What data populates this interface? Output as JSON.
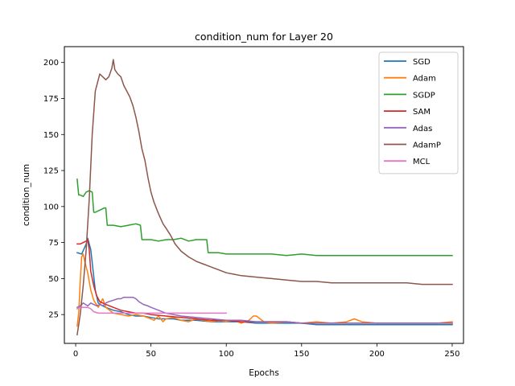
{
  "chart_data": {
    "type": "line",
    "title": "condition_num for Layer 20",
    "xlabel": "Epochs",
    "ylabel": "condition_num",
    "xlim": [
      -7.5,
      257.5
    ],
    "ylim": [
      5,
      211
    ],
    "xticks": [
      0,
      50,
      100,
      150,
      200,
      250
    ],
    "yticks": [
      25,
      50,
      75,
      100,
      125,
      150,
      175,
      200
    ],
    "grid": false,
    "legend_position": "top-right",
    "series": [
      {
        "name": "SGD",
        "color": "#1f77b4",
        "x": [
          1,
          4,
          7,
          8,
          10,
          13,
          15,
          18,
          20,
          25,
          30,
          35,
          40,
          45,
          50,
          55,
          60,
          65,
          70,
          80,
          90,
          100,
          110,
          120,
          130,
          140,
          150,
          160,
          170,
          180,
          190,
          200,
          210,
          220,
          230,
          240,
          250
        ],
        "values": [
          68,
          67,
          74,
          78,
          70,
          42,
          33,
          31,
          30,
          28,
          27,
          25,
          24,
          24,
          23,
          22,
          22,
          22,
          21,
          21,
          20,
          20,
          20,
          19,
          19,
          19,
          19,
          18,
          18,
          18,
          18,
          18,
          18,
          18,
          18,
          18,
          18
        ]
      },
      {
        "name": "Adam",
        "color": "#ff7f0e",
        "x": [
          1,
          2,
          3,
          4,
          5,
          6,
          8,
          10,
          12,
          15,
          18,
          20,
          25,
          30,
          35,
          40,
          45,
          50,
          52,
          55,
          58,
          60,
          65,
          70,
          75,
          80,
          85,
          90,
          95,
          100,
          105,
          110,
          115,
          118,
          120,
          125,
          130,
          140,
          150,
          160,
          170,
          180,
          185,
          190,
          200,
          210,
          220,
          230,
          240,
          250
        ],
        "values": [
          17,
          26,
          48,
          65,
          67,
          62,
          54,
          42,
          35,
          30,
          36,
          30,
          26,
          25,
          24,
          25,
          24,
          22,
          21,
          24,
          20,
          22,
          23,
          21,
          20,
          22,
          21,
          20,
          21,
          20,
          21,
          19,
          21,
          24,
          24,
          20,
          19,
          20,
          19,
          20,
          19,
          20,
          22,
          20,
          19,
          19,
          19,
          19,
          19,
          20
        ]
      },
      {
        "name": "SGDP",
        "color": "#2ca02c",
        "x": [
          1,
          2,
          3,
          5,
          7,
          9,
          11,
          12,
          13,
          15,
          17,
          19,
          20,
          21,
          22,
          25,
          30,
          35,
          40,
          43,
          44,
          50,
          55,
          60,
          65,
          70,
          75,
          80,
          85,
          87,
          88,
          95,
          100,
          110,
          120,
          125,
          130,
          140,
          150,
          160,
          170,
          180,
          190,
          200,
          210,
          220,
          230,
          240,
          250
        ],
        "values": [
          119,
          108,
          108,
          107,
          110,
          111,
          110,
          96,
          96,
          97,
          98,
          99,
          99,
          87,
          87,
          87,
          86,
          87,
          88,
          87,
          77,
          77,
          76,
          77,
          77,
          78,
          76,
          77,
          77,
          77,
          68,
          68,
          67,
          67,
          67,
          67,
          67,
          66,
          67,
          66,
          66,
          66,
          66,
          66,
          66,
          66,
          66,
          66,
          66
        ]
      },
      {
        "name": "SAM",
        "color": "#d62728",
        "x": [
          1,
          3,
          5,
          7,
          8,
          9,
          10,
          12,
          14,
          16,
          18,
          20,
          25,
          30,
          35,
          40,
          45,
          50,
          60,
          70,
          80,
          90,
          100,
          110,
          120,
          130,
          140,
          150,
          160,
          170,
          180,
          190,
          200,
          210,
          220,
          230,
          240,
          250
        ],
        "values": [
          74,
          74,
          75,
          76,
          77,
          70,
          55,
          45,
          38,
          34,
          33,
          32,
          30,
          28,
          27,
          26,
          26,
          25,
          24,
          23,
          22,
          21,
          21,
          20,
          20,
          20,
          20,
          19,
          19,
          19,
          19,
          19,
          19,
          19,
          19,
          19,
          19,
          19
        ]
      },
      {
        "name": "Adas",
        "color": "#9467bd",
        "x": [
          1,
          3,
          5,
          8,
          10,
          12,
          14,
          16,
          18,
          20,
          22,
          25,
          28,
          30,
          32,
          35,
          38,
          40,
          42,
          45,
          48,
          50,
          55,
          60,
          70,
          80,
          90,
          100,
          110,
          120,
          130,
          140,
          150,
          160,
          170,
          180,
          190,
          200,
          210,
          220,
          230,
          240,
          250
        ],
        "values": [
          30,
          31,
          33,
          31,
          33,
          32,
          31,
          32,
          31,
          33,
          34,
          35,
          36,
          36,
          37,
          37,
          37,
          36,
          34,
          32,
          31,
          30,
          28,
          26,
          24,
          23,
          22,
          21,
          21,
          20,
          20,
          20,
          19,
          19,
          19,
          19,
          19,
          19,
          19,
          19,
          19,
          19,
          19
        ]
      },
      {
        "name": "AdamP",
        "color": "#8c564b",
        "x": [
          1,
          3,
          5,
          7,
          9,
          11,
          13,
          14,
          16,
          18,
          20,
          22,
          24,
          25,
          26,
          28,
          30,
          32,
          34,
          36,
          38,
          40,
          42,
          44,
          46,
          48,
          50,
          52,
          55,
          58,
          60,
          63,
          66,
          70,
          75,
          80,
          85,
          90,
          95,
          100,
          105,
          110,
          120,
          130,
          140,
          150,
          160,
          170,
          180,
          190,
          200,
          210,
          220,
          230,
          240,
          250
        ],
        "values": [
          11,
          25,
          45,
          70,
          105,
          150,
          180,
          184,
          192,
          190,
          188,
          190,
          196,
          202,
          195,
          192,
          190,
          184,
          180,
          176,
          170,
          162,
          152,
          140,
          132,
          120,
          110,
          103,
          95,
          88,
          85,
          80,
          74,
          69,
          65,
          62,
          60,
          58,
          56,
          54,
          53,
          52,
          51,
          50,
          49,
          48,
          48,
          47,
          47,
          47,
          47,
          47,
          47,
          46,
          46,
          46
        ]
      },
      {
        "name": "MCL",
        "color": "#e377c2",
        "x": [
          1,
          3,
          5,
          8,
          10,
          12,
          15,
          20,
          30,
          40,
          50,
          60,
          70,
          80,
          90,
          95,
          100
        ],
        "values": [
          29,
          30,
          30,
          30,
          29,
          27,
          26,
          26,
          26,
          26,
          26,
          26,
          26,
          26,
          26,
          26,
          26
        ]
      }
    ]
  }
}
